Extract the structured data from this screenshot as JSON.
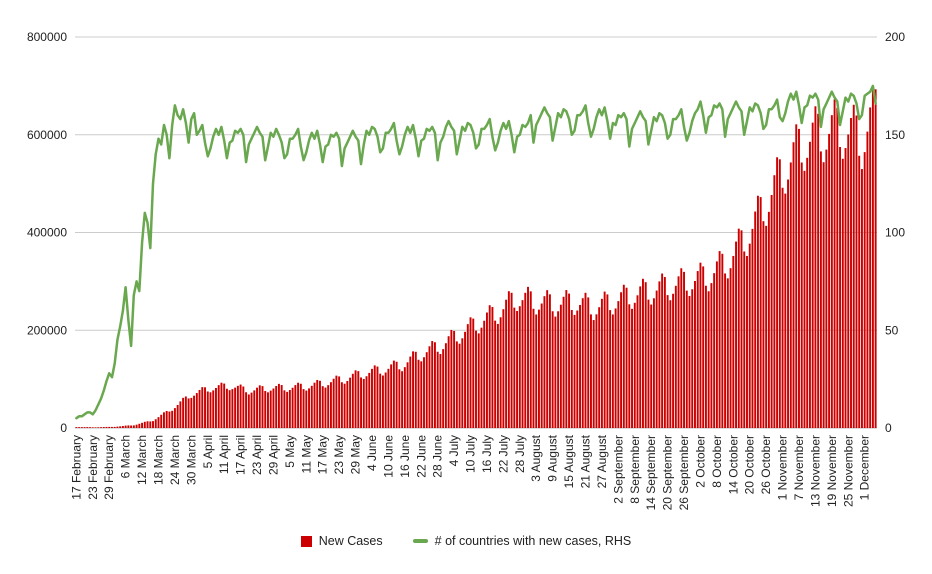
{
  "chart_data": {
    "type": "combo",
    "title": "",
    "x": {
      "unit": "day",
      "tick_every": 6,
      "tick_labels": [
        "17 February",
        "23 February",
        "29 February",
        "6 March",
        "12 March",
        "18 March",
        "24 March",
        "30 March",
        "5 April",
        "11 April",
        "17 April",
        "23 April",
        "29 April",
        "5 May",
        "11 May",
        "17 May",
        "23 May",
        "29 May",
        "4 June",
        "10 June",
        "16 June",
        "22 June",
        "28 June",
        "4 July",
        "10 July",
        "16 July",
        "22 July",
        "28 July",
        "3 August",
        "9 August",
        "15 August",
        "21 August",
        "27 August",
        "2 September",
        "8 September",
        "14 September",
        "20 September",
        "26 September",
        "2 October",
        "8 October",
        "14 October",
        "20 October",
        "26 October",
        "1 November",
        "7 November",
        "13 November",
        "19 November",
        "25 November",
        "1 December"
      ]
    },
    "left_axis": {
      "min": 0,
      "max": 800000,
      "ticks": [
        0,
        200000,
        400000,
        600000,
        800000
      ],
      "tick_labels": [
        "0",
        "200000",
        "400000",
        "600000",
        "800000"
      ]
    },
    "right_axis": {
      "min": 0,
      "max": 200,
      "ticks": [
        0,
        50,
        100,
        150,
        200
      ],
      "tick_labels": [
        "0",
        "50",
        "100",
        "150",
        "200"
      ]
    },
    "grid": true,
    "legend_position": "bottom",
    "colors": {
      "bars": "#cc0000",
      "line": "#6aa84f",
      "gridline": "#cccccc",
      "baseline": "#b7b7b7",
      "text": "#222222"
    },
    "series": [
      {
        "name": "New Cases",
        "type": "bar",
        "axis": "left",
        "color": "#cc0000",
        "values": [
          1800,
          1800,
          1800,
          1800,
          1900,
          1700,
          1400,
          1300,
          1500,
          1700,
          2000,
          2200,
          2300,
          2200,
          2200,
          2800,
          3400,
          4100,
          4900,
          5300,
          5100,
          5300,
          6800,
          8600,
          10600,
          12700,
          13800,
          13400,
          14100,
          17900,
          22200,
          27100,
          32100,
          34800,
          33600,
          35200,
          40700,
          47100,
          54400,
          61700,
          64500,
          60500,
          61600,
          66100,
          71500,
          77800,
          83600,
          83300,
          74700,
          73000,
          77000,
          81900,
          87700,
          92700,
          90900,
          80300,
          77400,
          79600,
          82600,
          86200,
          88900,
          84900,
          73100,
          68600,
          72400,
          77000,
          82500,
          87300,
          85700,
          75700,
          73000,
          76500,
          80800,
          85900,
          90300,
          87900,
          77100,
          73900,
          77700,
          82300,
          87800,
          92600,
          90500,
          79600,
          76600,
          81000,
          86300,
          92700,
          98300,
          96600,
          85600,
          82700,
          87700,
          93700,
          100800,
          107100,
          105500,
          93600,
          90600,
          96200,
          103000,
          110900,
          118000,
          116400,
          103400,
          100300,
          105900,
          112800,
          121000,
          128100,
          125700,
          111200,
          107400,
          113600,
          121100,
          130100,
          137900,
          135600,
          120100,
          116200,
          124500,
          134400,
          146100,
          156800,
          155900,
          139600,
          136400,
          144800,
          155100,
          167200,
          177900,
          175500,
          156000,
          151400,
          161400,
          173500,
          187800,
          200600,
          198600,
          177200,
          172500,
          183500,
          196800,
          212500,
          226500,
          223800,
          199200,
          193600,
          205300,
          219500,
          236300,
          251200,
          247500,
          219700,
          213000,
          226600,
          243100,
          262500,
          279900,
          276600,
          246300,
          239400,
          249200,
          261600,
          276600,
          288800,
          279600,
          243900,
          232300,
          242200,
          254700,
          269700,
          282000,
          273500,
          238900,
          227900,
          238800,
          252300,
          268500,
          282200,
          275000,
          241400,
          231400,
          240400,
          251800,
          265600,
          276600,
          267200,
          232500,
          220900,
          232600,
          247100,
          264300,
          279100,
          273300,
          241200,
          232300,
          244600,
          259700,
          277700,
          293100,
          287000,
          253100,
          243800,
          256200,
          271500,
          289700,
          305300,
          298400,
          262700,
          252600,
          265400,
          281200,
          300000,
          316100,
          308900,
          271900,
          261400,
          274600,
          290900,
          310300,
          326900,
          319400,
          281100,
          270200,
          283900,
          300800,
          321100,
          338300,
          330600,
          291100,
          279800,
          296500,
          316800,
          340800,
          362000,
          356400,
          316200,
          306200,
          327000,
          352000,
          381400,
          407900,
          404400,
          361200,
          352000,
          377200,
          407400,
          442900,
          475200,
          472500,
          423200,
          413600,
          442300,
          476700,
          517200,
          553900,
          549800,
          491500,
          479600,
          508400,
          543300,
          584700,
          621300,
          612000,
          543200,
          526200,
          552800,
          585600,
          624800,
          658200,
          642900,
          565900,
          543800,
          569600,
          601700,
          640100,
          672400,
          654900,
          574900,
          550900,
          572800,
          600600,
          634200,
          661300,
          639300,
          557000,
          529800,
          564500,
          606400,
          655900,
          700300,
          693000
        ]
      },
      {
        "name": "# of countries with new cases, RHS",
        "type": "line",
        "axis": "right",
        "color": "#6aa84f",
        "values": [
          5,
          6,
          6,
          7,
          8,
          8,
          7,
          9,
          12,
          15,
          19,
          24,
          28,
          26,
          33,
          45,
          52,
          60,
          72,
          55,
          42,
          68,
          75,
          70,
          95,
          110,
          105,
          92,
          125,
          140,
          148,
          145,
          155,
          150,
          138,
          155,
          165,
          160,
          158,
          163,
          156,
          146,
          158,
          161,
          150,
          152,
          155,
          146,
          139,
          143,
          149,
          153,
          150,
          154,
          147,
          138,
          146,
          147,
          152,
          151,
          153,
          150,
          136,
          145,
          148,
          151,
          154,
          151,
          149,
          137,
          144,
          151,
          149,
          153,
          150,
          146,
          138,
          140,
          148,
          148,
          150,
          153,
          144,
          137,
          141,
          147,
          151,
          148,
          152,
          145,
          136,
          144,
          145,
          150,
          149,
          151,
          148,
          134,
          143,
          146,
          149,
          152,
          149,
          147,
          135,
          145,
          152,
          150,
          154,
          153,
          149,
          141,
          143,
          151,
          151,
          153,
          156,
          147,
          140,
          144,
          150,
          154,
          151,
          155,
          148,
          139,
          147,
          148,
          153,
          152,
          154,
          151,
          137,
          146,
          149,
          154,
          157,
          154,
          152,
          140,
          147,
          154,
          152,
          156,
          155,
          151,
          143,
          145,
          153,
          153,
          155,
          158,
          149,
          142,
          146,
          152,
          156,
          153,
          157,
          150,
          141,
          149,
          150,
          155,
          154,
          156,
          160,
          146,
          155,
          158,
          161,
          164,
          161,
          159,
          147,
          154,
          161,
          159,
          163,
          162,
          158,
          150,
          152,
          160,
          160,
          162,
          165,
          156,
          149,
          153,
          159,
          163,
          160,
          164,
          157,
          148,
          156,
          155,
          160,
          159,
          161,
          158,
          144,
          153,
          156,
          159,
          162,
          159,
          157,
          145,
          152,
          159,
          157,
          161,
          160,
          156,
          148,
          150,
          158,
          158,
          160,
          163,
          154,
          147,
          151,
          157,
          161,
          163,
          167,
          160,
          151,
          159,
          160,
          165,
          164,
          166,
          163,
          149,
          158,
          161,
          164,
          167,
          164,
          162,
          150,
          157,
          164,
          162,
          166,
          165,
          161,
          153,
          155,
          163,
          163,
          165,
          168,
          159,
          157,
          161,
          167,
          171,
          168,
          172,
          165,
          156,
          164,
          165,
          170,
          169,
          171,
          168,
          154,
          163,
          166,
          169,
          172,
          169,
          167,
          155,
          162,
          169,
          167,
          171,
          170,
          166,
          158,
          160,
          170,
          171,
          172,
          175,
          166
        ]
      }
    ]
  },
  "legend": {
    "items": [
      {
        "label": "New Cases",
        "marker": "square"
      },
      {
        "label": "# of countries with new cases, RHS",
        "marker": "line"
      }
    ]
  }
}
